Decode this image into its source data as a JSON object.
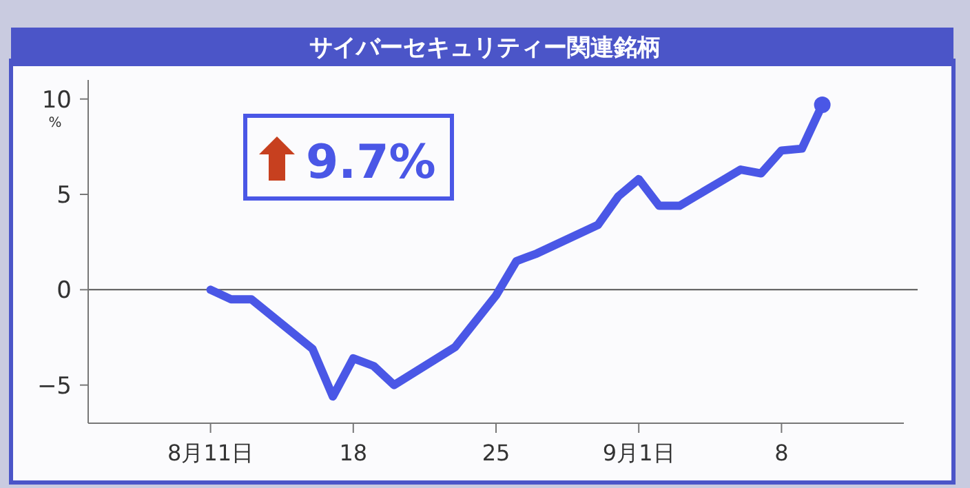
{
  "chart_data": {
    "type": "line",
    "title": "サイバーセキュリティー関連銘柄",
    "ylabel": "%",
    "xlim": [
      "--08-05",
      "--09-14"
    ],
    "ylim": [
      -7,
      11
    ],
    "xticks": [
      {
        "value": "--08-11",
        "label": "8月11日"
      },
      {
        "value": "--08-18",
        "label": "18"
      },
      {
        "value": "--08-25",
        "label": "25"
      },
      {
        "value": "--09-01",
        "label": "9月1日"
      },
      {
        "value": "--09-08",
        "label": "8"
      }
    ],
    "yticks": [
      {
        "value": -5,
        "label": "−5"
      },
      0,
      5,
      10
    ],
    "grid": false,
    "line_style": "solid",
    "marker": "none",
    "ref_lines": [
      {
        "axis": "y",
        "value": 0,
        "color": "#555555"
      }
    ],
    "annotations": [
      "9.7%"
    ],
    "series": [
      {
        "type": "line",
        "color": "#4a57e6",
        "x": [
          "--08-11",
          "--08-12",
          "--08-13",
          "--08-16",
          "--08-17",
          "--08-18",
          "--08-19",
          "--08-20",
          "--08-23",
          "--08-25",
          "--08-26",
          "--08-27",
          "--08-30",
          "--08-31",
          "--09-01",
          "--09-02",
          "--09-03",
          "--09-06",
          "--09-07",
          "--09-08",
          "--09-09",
          "--09-10"
        ],
        "values": [
          0,
          -0.5,
          -0.5,
          -3.1,
          -5.6,
          -3.6,
          -4.0,
          -5.0,
          -3.0,
          -0.3,
          1.5,
          1.9,
          3.4,
          4.9,
          5.8,
          4.4,
          4.4,
          6.3,
          6.1,
          7.3,
          7.4,
          9.7
        ]
      },
      {
        "type": "scatter",
        "color": "#4a57e6",
        "marker": "circle",
        "x": [
          "--09-10"
        ],
        "values": [
          9.7
        ]
      }
    ]
  }
}
